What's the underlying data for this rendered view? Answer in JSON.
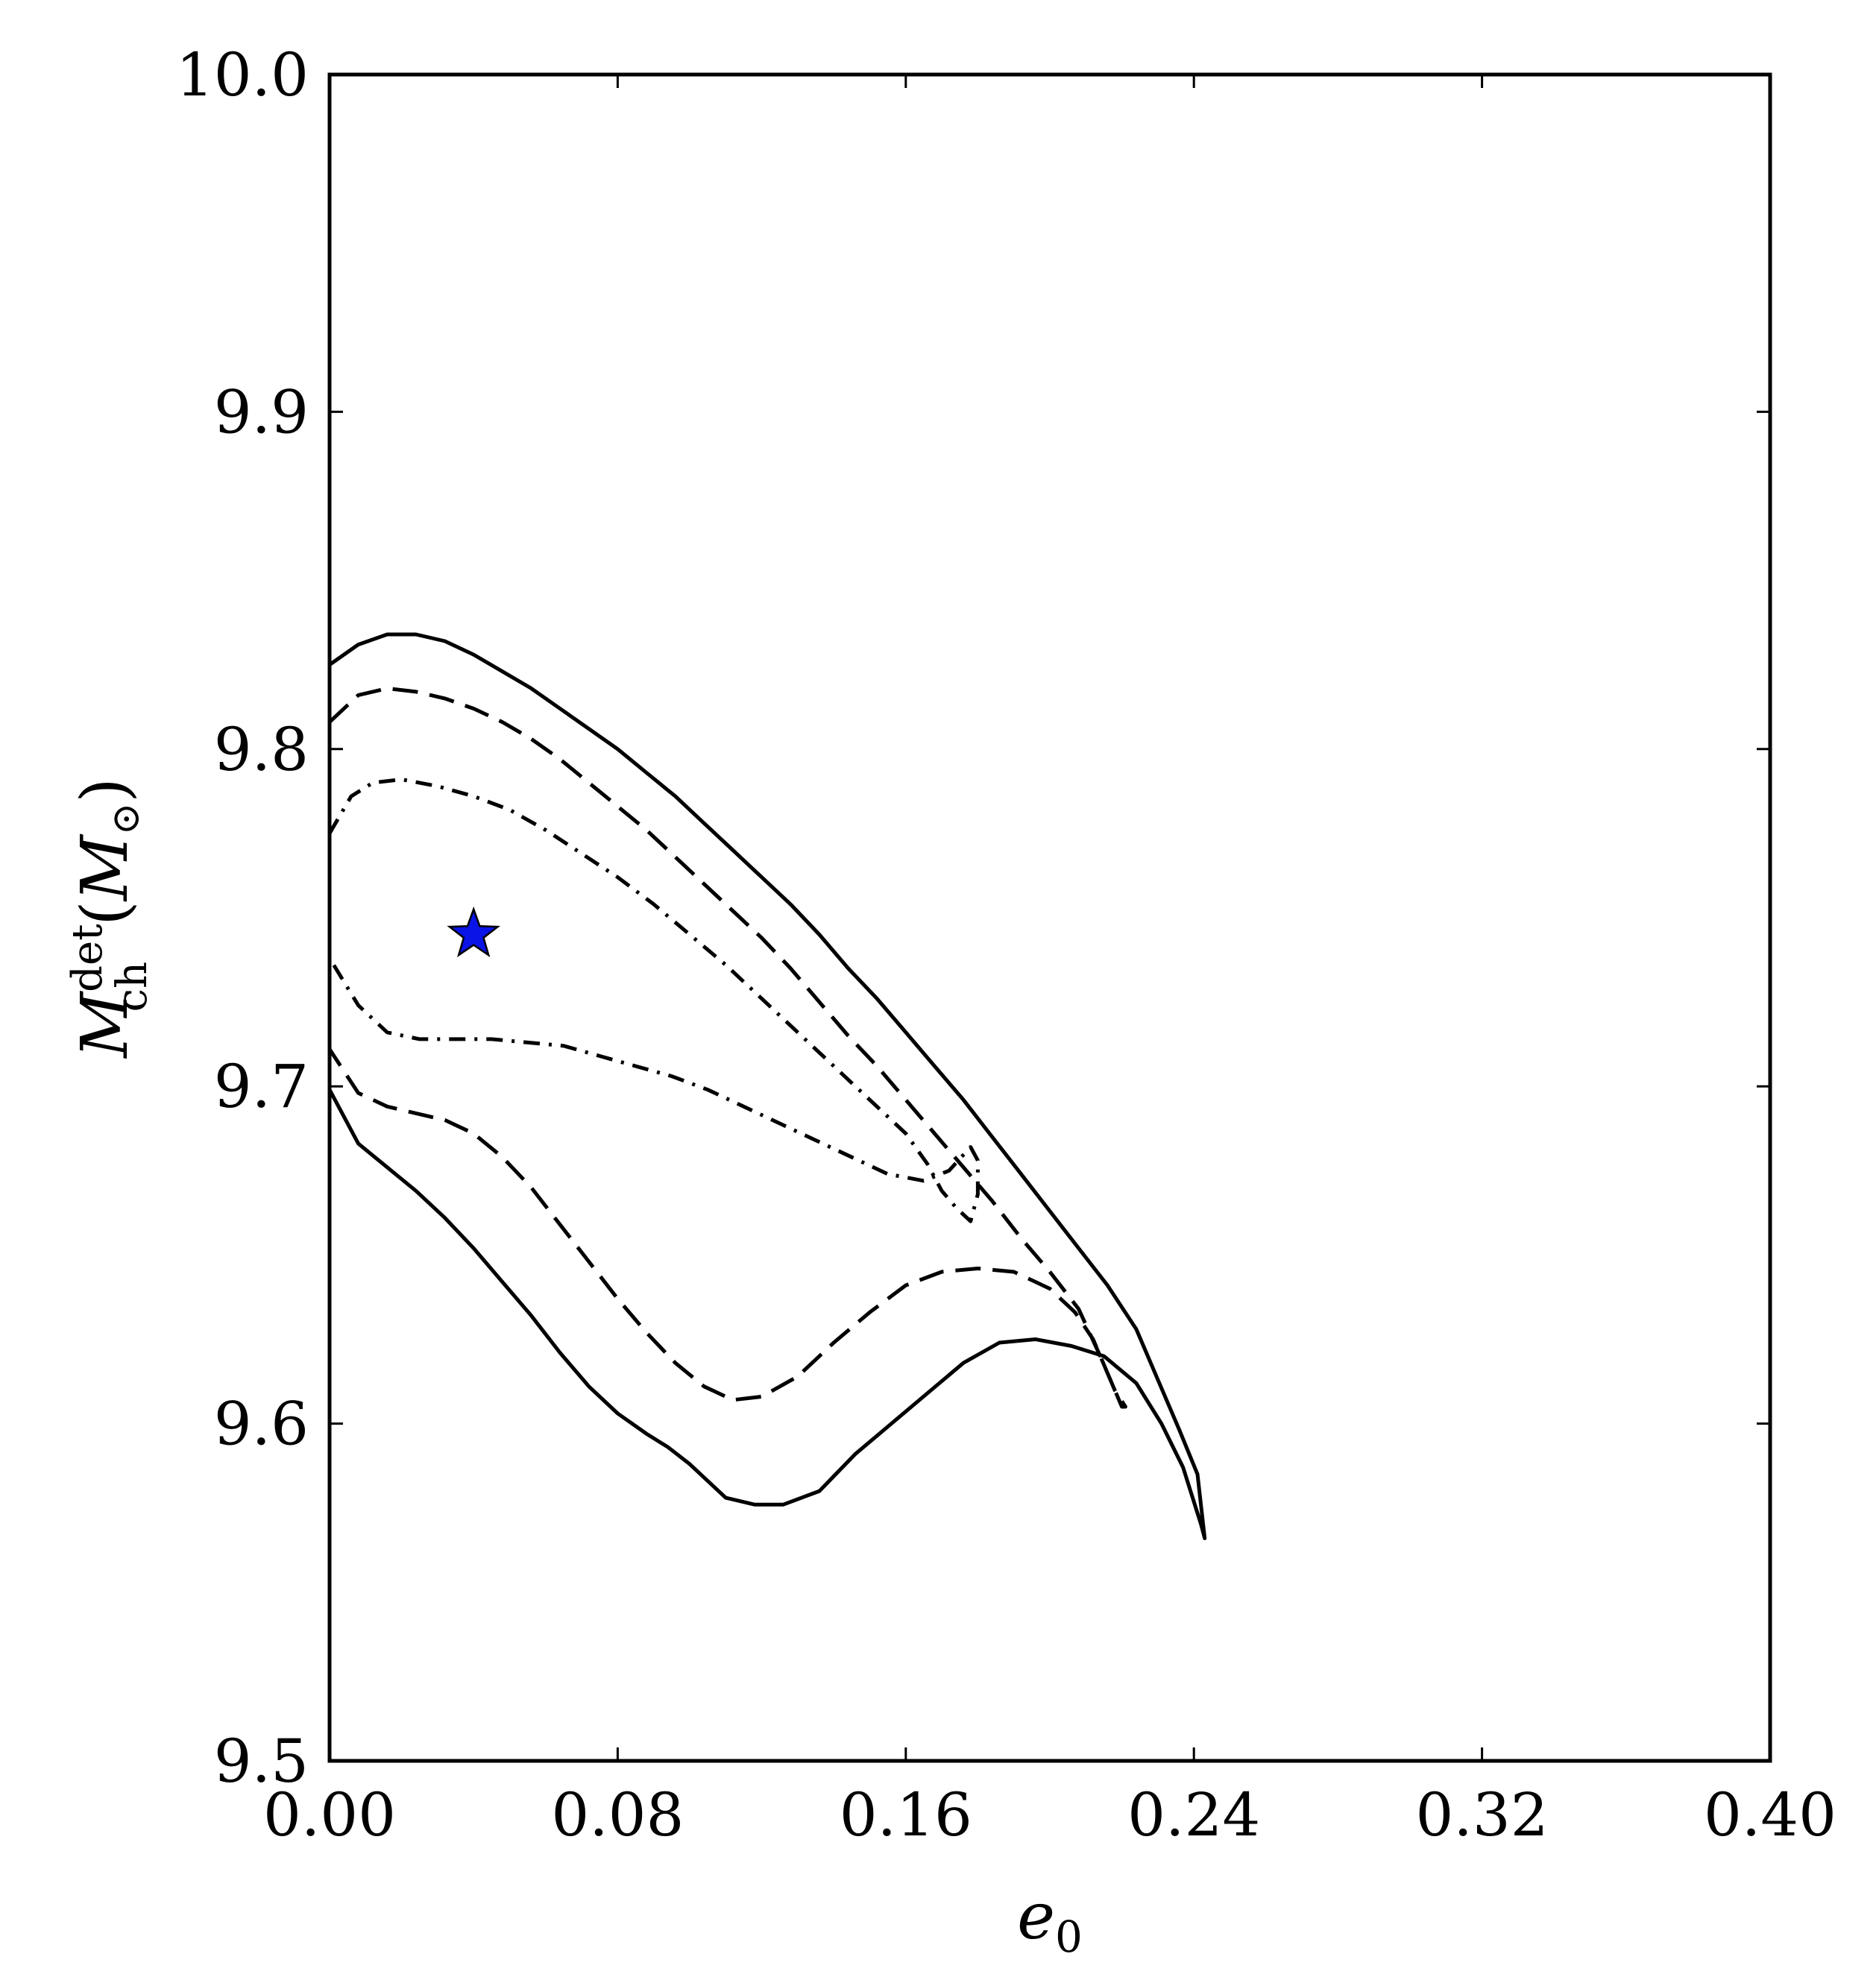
{
  "chart_data": {
    "type": "contour",
    "xlabel": {
      "symbol": "e",
      "subscript": "0"
    },
    "ylabel": {
      "symbol": "M",
      "subscript": "ch",
      "superscript": "det",
      "unit_open": "(",
      "unit_symbol": "M",
      "unit_subscript": "⊙",
      "unit_close": ")"
    },
    "xlim": [
      0.0,
      0.4
    ],
    "ylim": [
      9.5,
      10.0
    ],
    "x_ticks": [
      0.0,
      0.08,
      0.16,
      0.24,
      0.32,
      0.4
    ],
    "x_tick_labels": [
      "0.00",
      "0.08",
      "0.16",
      "0.24",
      "0.32",
      "0.40"
    ],
    "y_ticks": [
      9.5,
      9.6,
      9.7,
      9.8,
      9.9,
      10.0
    ],
    "y_tick_labels": [
      "9.5",
      "9.6",
      "9.7",
      "9.8",
      "9.9",
      "10.0"
    ],
    "grid": false,
    "colors": {
      "line": "#000000",
      "star_fill": "#0a14e6",
      "star_edge": "#000000"
    },
    "contours": [
      {
        "style": "solid",
        "points": [
          [
            0.0,
            9.825
          ],
          [
            0.008,
            9.831
          ],
          [
            0.016,
            9.834
          ],
          [
            0.024,
            9.834
          ],
          [
            0.032,
            9.832
          ],
          [
            0.04,
            9.828
          ],
          [
            0.048,
            9.823
          ],
          [
            0.056,
            9.818
          ],
          [
            0.064,
            9.812
          ],
          [
            0.072,
            9.806
          ],
          [
            0.08,
            9.8
          ],
          [
            0.088,
            9.793
          ],
          [
            0.096,
            9.786
          ],
          [
            0.104,
            9.778
          ],
          [
            0.112,
            9.77
          ],
          [
            0.12,
            9.762
          ],
          [
            0.128,
            9.754
          ],
          [
            0.136,
            9.745
          ],
          [
            0.144,
            9.735
          ],
          [
            0.152,
            9.726
          ],
          [
            0.16,
            9.716
          ],
          [
            0.168,
            9.706
          ],
          [
            0.176,
            9.696
          ],
          [
            0.184,
            9.685
          ],
          [
            0.192,
            9.674
          ],
          [
            0.2,
            9.663
          ],
          [
            0.208,
            9.652
          ],
          [
            0.216,
            9.641
          ],
          [
            0.224,
            9.628
          ],
          [
            0.23,
            9.613
          ],
          [
            0.236,
            9.598
          ],
          [
            0.241,
            9.585
          ],
          [
            0.243,
            9.566
          ],
          [
            0.242,
            9.57
          ],
          [
            0.237,
            9.587
          ],
          [
            0.231,
            9.6
          ],
          [
            0.224,
            9.612
          ],
          [
            0.215,
            9.62
          ],
          [
            0.206,
            9.623
          ],
          [
            0.196,
            9.625
          ],
          [
            0.186,
            9.624
          ],
          [
            0.176,
            9.618
          ],
          [
            0.166,
            9.609
          ],
          [
            0.156,
            9.6
          ],
          [
            0.146,
            9.591
          ],
          [
            0.136,
            9.58
          ],
          [
            0.126,
            9.576
          ],
          [
            0.118,
            9.576
          ],
          [
            0.11,
            9.578
          ],
          [
            0.1,
            9.588
          ],
          [
            0.094,
            9.593
          ],
          [
            0.088,
            9.597
          ],
          [
            0.08,
            9.603
          ],
          [
            0.072,
            9.611
          ],
          [
            0.064,
            9.621
          ],
          [
            0.056,
            9.632
          ],
          [
            0.048,
            9.642
          ],
          [
            0.04,
            9.652
          ],
          [
            0.032,
            9.661
          ],
          [
            0.024,
            9.669
          ],
          [
            0.016,
            9.676
          ],
          [
            0.008,
            9.683
          ],
          [
            0.0,
            9.699
          ]
        ]
      },
      {
        "style": "dashed",
        "points": [
          [
            0.0,
            9.808
          ],
          [
            0.008,
            9.816
          ],
          [
            0.016,
            9.818
          ],
          [
            0.024,
            9.817
          ],
          [
            0.032,
            9.815
          ],
          [
            0.04,
            9.812
          ],
          [
            0.048,
            9.808
          ],
          [
            0.056,
            9.803
          ],
          [
            0.064,
            9.797
          ],
          [
            0.072,
            9.79
          ],
          [
            0.08,
            9.783
          ],
          [
            0.088,
            9.776
          ],
          [
            0.096,
            9.768
          ],
          [
            0.104,
            9.76
          ],
          [
            0.112,
            9.752
          ],
          [
            0.12,
            9.744
          ],
          [
            0.128,
            9.735
          ],
          [
            0.136,
            9.725
          ],
          [
            0.144,
            9.715
          ],
          [
            0.152,
            9.706
          ],
          [
            0.16,
            9.696
          ],
          [
            0.168,
            9.686
          ],
          [
            0.176,
            9.676
          ],
          [
            0.184,
            9.666
          ],
          [
            0.192,
            9.655
          ],
          [
            0.2,
            9.645
          ],
          [
            0.208,
            9.634
          ],
          [
            0.214,
            9.62
          ],
          [
            0.218,
            9.61
          ],
          [
            0.221,
            9.605
          ],
          [
            0.22,
            9.605
          ],
          [
            0.216,
            9.615
          ],
          [
            0.212,
            9.625
          ],
          [
            0.207,
            9.633
          ],
          [
            0.2,
            9.64
          ],
          [
            0.19,
            9.645
          ],
          [
            0.18,
            9.646
          ],
          [
            0.17,
            9.645
          ],
          [
            0.16,
            9.641
          ],
          [
            0.15,
            9.633
          ],
          [
            0.14,
            9.624
          ],
          [
            0.13,
            9.614
          ],
          [
            0.12,
            9.608
          ],
          [
            0.112,
            9.607
          ],
          [
            0.104,
            9.611
          ],
          [
            0.096,
            9.618
          ],
          [
            0.088,
            9.627
          ],
          [
            0.08,
            9.637
          ],
          [
            0.072,
            9.648
          ],
          [
            0.064,
            9.659
          ],
          [
            0.056,
            9.67
          ],
          [
            0.048,
            9.679
          ],
          [
            0.04,
            9.686
          ],
          [
            0.032,
            9.69
          ],
          [
            0.024,
            9.692
          ],
          [
            0.016,
            9.694
          ],
          [
            0.008,
            9.698
          ],
          [
            0.0,
            9.711
          ]
        ]
      },
      {
        "style": "dashdot",
        "points": [
          [
            0.0,
            9.775
          ],
          [
            0.006,
            9.786
          ],
          [
            0.012,
            9.79
          ],
          [
            0.02,
            9.791
          ],
          [
            0.03,
            9.789
          ],
          [
            0.04,
            9.786
          ],
          [
            0.05,
            9.782
          ],
          [
            0.06,
            9.776
          ],
          [
            0.07,
            9.769
          ],
          [
            0.08,
            9.762
          ],
          [
            0.09,
            9.754
          ],
          [
            0.1,
            9.745
          ],
          [
            0.11,
            9.736
          ],
          [
            0.12,
            9.726
          ],
          [
            0.13,
            9.716
          ],
          [
            0.14,
            9.706
          ],
          [
            0.15,
            9.696
          ],
          [
            0.16,
            9.686
          ],
          [
            0.166,
            9.677
          ],
          [
            0.17,
            9.669
          ],
          [
            0.174,
            9.664
          ],
          [
            0.178,
            9.66
          ],
          [
            0.18,
            9.668
          ],
          [
            0.18,
            9.678
          ],
          [
            0.178,
            9.682
          ],
          [
            0.172,
            9.675
          ],
          [
            0.165,
            9.672
          ],
          [
            0.155,
            9.674
          ],
          [
            0.145,
            9.679
          ],
          [
            0.135,
            9.684
          ],
          [
            0.125,
            9.689
          ],
          [
            0.115,
            9.694
          ],
          [
            0.105,
            9.699
          ],
          [
            0.095,
            9.703
          ],
          [
            0.085,
            9.706
          ],
          [
            0.075,
            9.709
          ],
          [
            0.065,
            9.712
          ],
          [
            0.055,
            9.713
          ],
          [
            0.045,
            9.714
          ],
          [
            0.035,
            9.714
          ],
          [
            0.025,
            9.714
          ],
          [
            0.016,
            9.716
          ],
          [
            0.008,
            9.724
          ],
          [
            0.0,
            9.738
          ]
        ]
      }
    ],
    "marker": {
      "shape": "star",
      "x": 0.04,
      "y": 9.745
    }
  }
}
